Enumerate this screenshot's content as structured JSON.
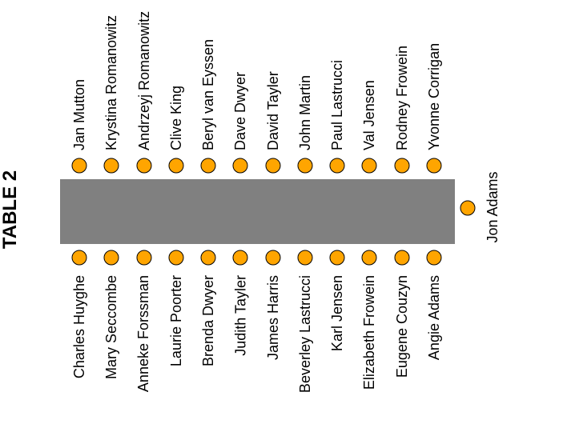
{
  "title": "TABLE 2",
  "colors": {
    "table_fill": "#808080",
    "seat_fill": "#FFA500",
    "seat_outline": "#000000",
    "text": "#000000",
    "background": "#ffffff"
  },
  "seats": {
    "top": [
      "Jan Mutton",
      "Krystina Romanowitz",
      "Andrzeyj Romanowitz",
      "Clive King",
      "Beryl van Eyssen",
      "Dave Dwyer",
      "David Tayler",
      "John Martin",
      "Paul Lastrucci",
      "Val Jensen",
      "Rodney Frowein",
      "Yvonne Corrigan"
    ],
    "bottom": [
      "Charles Huyghe",
      "Mary Seccombe",
      "Anneke Forssman",
      "Laurie Poorter",
      "Brenda Dwyer",
      "Judith Tayler",
      "James Harris",
      "Beverley Lastrucci",
      "Karl Jensen",
      "Elizabeth Frowein",
      "Eugene Couzyn",
      "Angie Adams"
    ],
    "right": [
      "Jon Adams"
    ]
  }
}
